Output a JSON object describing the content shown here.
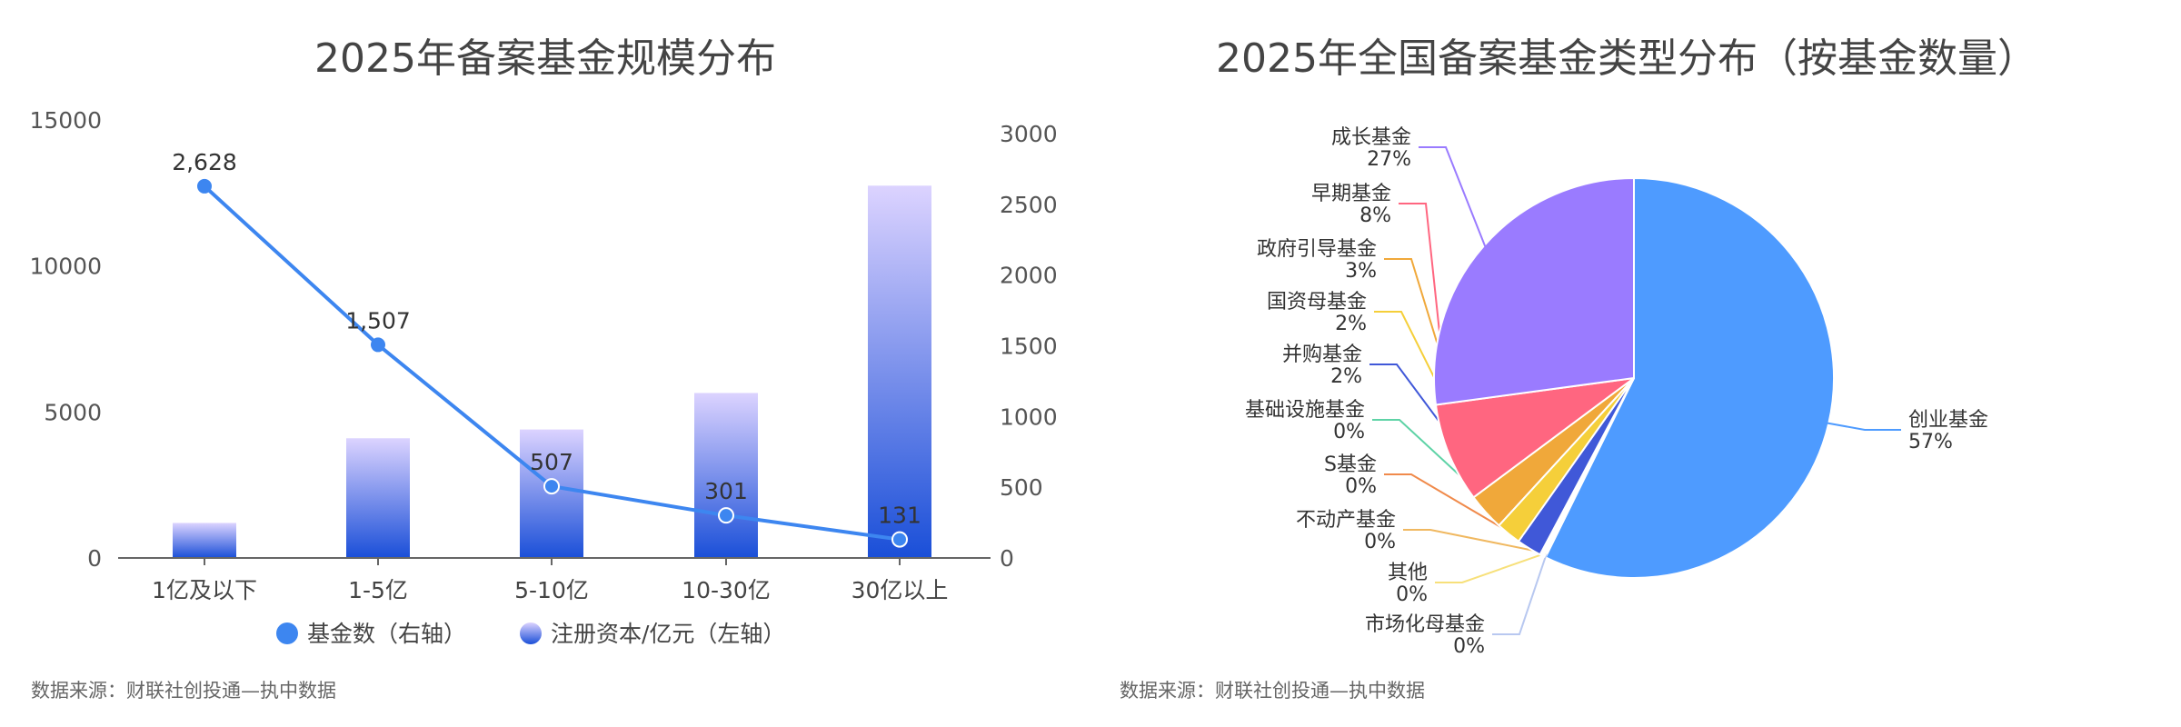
{
  "left": {
    "title": "2025年备案基金规模分布",
    "source": "数据来源：财联社创投通—执中数据"
  },
  "right": {
    "title": "2025年全国备案基金类型分布（按基金数量）",
    "source": "数据来源：财联社创投通—执中数据"
  },
  "chart_data": [
    {
      "type": "bar+line",
      "title": "2025年备案基金规模分布",
      "categories": [
        "1亿及以下",
        "1-5亿",
        "5-10亿",
        "10-30亿",
        "30亿以上"
      ],
      "left_axis": {
        "ylim": [
          0,
          15000
        ],
        "ticks": [
          0,
          5000,
          10000,
          15000
        ]
      },
      "right_axis": {
        "ylim": [
          0,
          3000
        ],
        "ticks": [
          0,
          500,
          1000,
          1500,
          2000,
          2500,
          3000
        ]
      },
      "series": [
        {
          "name": "基金数（右轴）",
          "type": "line",
          "axis": "right",
          "color": "#3d86f0",
          "values": [
            2628,
            1507,
            507,
            301,
            131
          ],
          "labels": [
            "2,628",
            "1,507",
            "507",
            "301",
            "131"
          ]
        },
        {
          "name": "注册资本/亿元（左轴）",
          "type": "bar",
          "axis": "left",
          "color_top": "#dcd3ff",
          "color_bottom": "#1a4fd8",
          "values": [
            1200,
            4100,
            4400,
            5650,
            12750
          ]
        }
      ],
      "legend": "bottom"
    },
    {
      "type": "pie",
      "title": "2025年全国备案基金类型分布（按基金数量）",
      "slices": [
        {
          "name": "创业基金",
          "pct": "57%",
          "value": 57,
          "color": "#4e9bff"
        },
        {
          "name": "市场化母基金",
          "pct": "0%",
          "value": 0,
          "color": "#b8c8f0"
        },
        {
          "name": "其他",
          "pct": "0%",
          "value": 0,
          "color": "#f7e07a"
        },
        {
          "name": "不动产基金",
          "pct": "0%",
          "value": 0,
          "color": "#f0b860"
        },
        {
          "name": "S基金",
          "pct": "0%",
          "value": 0,
          "color": "#f08a4b"
        },
        {
          "name": "基础设施基金",
          "pct": "0%",
          "value": 0,
          "color": "#5ed3a6"
        },
        {
          "name": "并购基金",
          "pct": "2%",
          "value": 2,
          "color": "#4058d8"
        },
        {
          "name": "国资母基金",
          "pct": "2%",
          "value": 2,
          "color": "#f5cf3a"
        },
        {
          "name": "政府引导基金",
          "pct": "3%",
          "value": 3,
          "color": "#f0a83a"
        },
        {
          "name": "早期基金",
          "pct": "8%",
          "value": 8,
          "color": "#ff6680"
        },
        {
          "name": "成长基金",
          "pct": "27%",
          "value": 27,
          "color": "#9a7bff"
        }
      ]
    }
  ]
}
